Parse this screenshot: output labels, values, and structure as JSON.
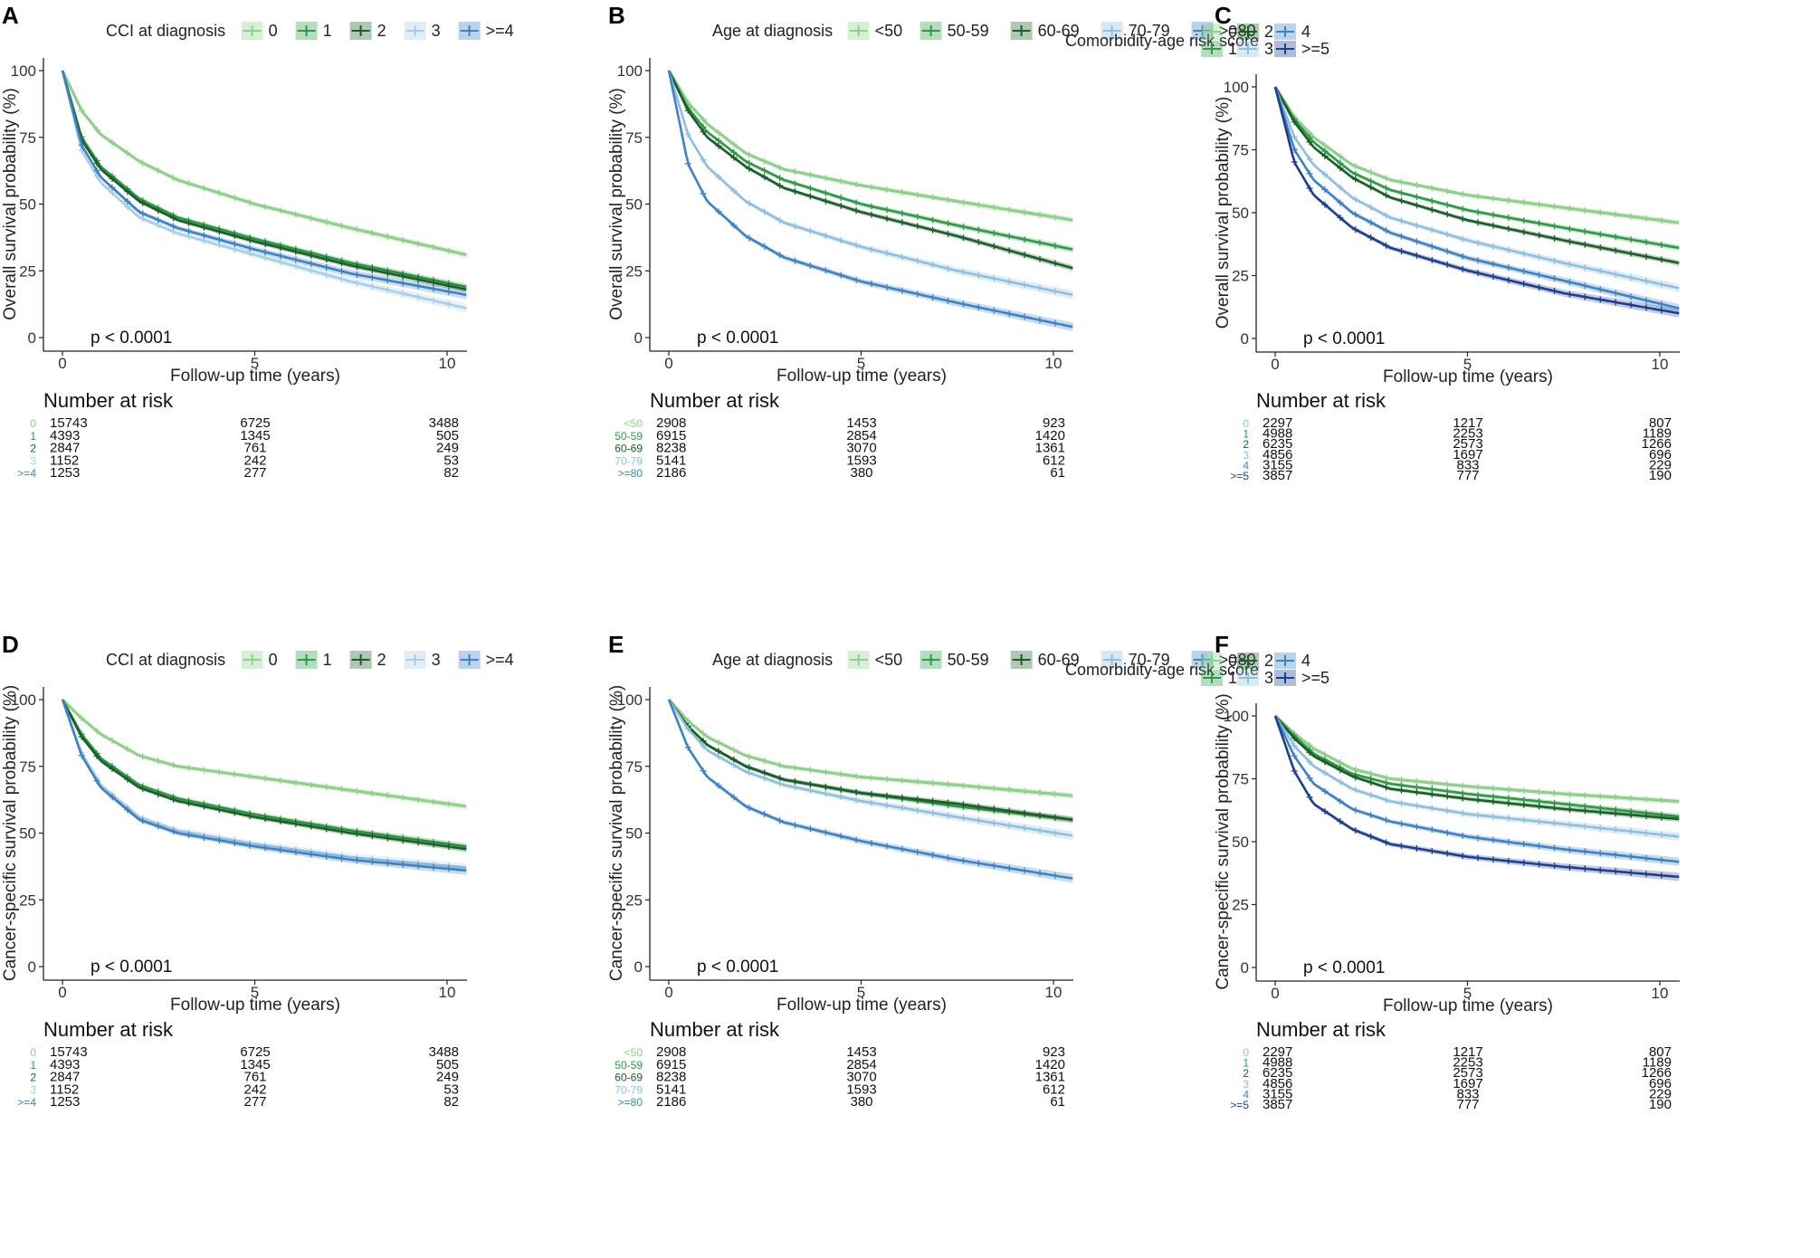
{
  "panels": [
    {
      "id": "A",
      "legend_title": "CCI at diagnosis",
      "ylabel": "Overall survival probability (%)",
      "xlabel": "Follow-up time (years)",
      "pvalue": "p < 0.0001",
      "risk_title": "Number at risk",
      "legend_rows": 1,
      "groups": [
        {
          "name": "0",
          "color": "#8fd18b",
          "risk": [
            "15743",
            "6725",
            "3488"
          ]
        },
        {
          "name": "1",
          "color": "#2e9a47",
          "risk": [
            "4393",
            "1345",
            "505"
          ]
        },
        {
          "name": "2",
          "color": "#1b5e27",
          "risk": [
            "2847",
            "761",
            "249"
          ]
        },
        {
          "name": "3",
          "color": "#a9cde6",
          "risk": [
            "1152",
            "242",
            "53"
          ]
        },
        {
          "name": ">=4",
          "color": "#3d82c4",
          "risk": [
            "1253",
            "277",
            "82"
          ]
        }
      ]
    },
    {
      "id": "B",
      "legend_title": "Age at diagnosis",
      "ylabel": "Overall survival probability (%)",
      "xlabel": "Follow-up time (years)",
      "pvalue": "p < 0.0001",
      "risk_title": "Number at risk",
      "legend_rows": 1,
      "groups": [
        {
          "name": "<50",
          "color": "#8fd18b",
          "risk": [
            "2908",
            "1453",
            "923"
          ]
        },
        {
          "name": "50-59",
          "color": "#2e9a47",
          "risk": [
            "6915",
            "2854",
            "1420"
          ]
        },
        {
          "name": "60-69",
          "color": "#1b5e27",
          "risk": [
            "8238",
            "3070",
            "1361"
          ]
        },
        {
          "name": "70-79",
          "color": "#8ebfe0",
          "risk": [
            "5141",
            "1593",
            "612"
          ]
        },
        {
          "name": ">=80",
          "color": "#3d82c4",
          "risk": [
            "2186",
            "380",
            "61"
          ]
        }
      ]
    },
    {
      "id": "C",
      "legend_title": "Comorbidity-age risk score",
      "ylabel": "Overall survival probability (%)",
      "xlabel": "Follow-up time (years)",
      "pvalue": "p < 0.0001",
      "risk_title": "Number at risk",
      "legend_rows": 2,
      "groups": [
        {
          "name": "0",
          "color": "#8fd18b",
          "risk": [
            "2297",
            "1217",
            "807"
          ]
        },
        {
          "name": "1",
          "color": "#2e9a47",
          "risk": [
            "4988",
            "2253",
            "1189"
          ]
        },
        {
          "name": "2",
          "color": "#1b5e27",
          "risk": [
            "6235",
            "2573",
            "1266"
          ]
        },
        {
          "name": "3",
          "color": "#8ebfe0",
          "risk": [
            "4856",
            "1697",
            "696"
          ]
        },
        {
          "name": "4",
          "color": "#3d82c4",
          "risk": [
            "3155",
            "833",
            "229"
          ]
        },
        {
          "name": ">=5",
          "color": "#1c3f8f",
          "risk": [
            "3857",
            "777",
            "190"
          ]
        }
      ]
    },
    {
      "id": "D",
      "legend_title": "CCI at diagnosis",
      "ylabel": "Cancer-specific survival probability (%)",
      "xlabel": "Follow-up time (years)",
      "pvalue": "p < 0.0001",
      "risk_title": "Number at risk",
      "legend_rows": 1,
      "groups": [
        {
          "name": "0",
          "color": "#8fd18b",
          "risk": [
            "15743",
            "6725",
            "3488"
          ]
        },
        {
          "name": "1",
          "color": "#2e9a47",
          "risk": [
            "4393",
            "1345",
            "505"
          ]
        },
        {
          "name": "2",
          "color": "#1b5e27",
          "risk": [
            "2847",
            "761",
            "249"
          ]
        },
        {
          "name": "3",
          "color": "#a9cde6",
          "risk": [
            "1152",
            "242",
            "53"
          ]
        },
        {
          "name": ">=4",
          "color": "#3d82c4",
          "risk": [
            "1253",
            "277",
            "82"
          ]
        }
      ]
    },
    {
      "id": "E",
      "legend_title": "Age at diagnosis",
      "ylabel": "Cancer-specific survival probability (%)",
      "xlabel": "Follow-up time (years)",
      "pvalue": "p < 0.0001",
      "risk_title": "Number at risk",
      "legend_rows": 1,
      "groups": [
        {
          "name": "<50",
          "color": "#8fd18b",
          "risk": [
            "2908",
            "1453",
            "923"
          ]
        },
        {
          "name": "50-59",
          "color": "#2e9a47",
          "risk": [
            "6915",
            "2854",
            "1420"
          ]
        },
        {
          "name": "60-69",
          "color": "#1b5e27",
          "risk": [
            "8238",
            "3070",
            "1361"
          ]
        },
        {
          "name": "70-79",
          "color": "#8ebfe0",
          "risk": [
            "5141",
            "1593",
            "612"
          ]
        },
        {
          "name": ">=80",
          "color": "#3d82c4",
          "risk": [
            "2186",
            "380",
            "61"
          ]
        }
      ]
    },
    {
      "id": "F",
      "legend_title": "Comorbidity-age risk score",
      "ylabel": "Cancer-specific survival probability (%)",
      "xlabel": "Follow-up time (years)",
      "pvalue": "p < 0.0001",
      "risk_title": "Number at risk",
      "legend_rows": 2,
      "groups": [
        {
          "name": "0",
          "color": "#8fd18b",
          "risk": [
            "2297",
            "1217",
            "807"
          ]
        },
        {
          "name": "1",
          "color": "#2e9a47",
          "risk": [
            "4988",
            "2253",
            "1189"
          ]
        },
        {
          "name": "2",
          "color": "#1b5e27",
          "risk": [
            "6235",
            "2573",
            "1266"
          ]
        },
        {
          "name": "3",
          "color": "#8ebfe0",
          "risk": [
            "4856",
            "1697",
            "696"
          ]
        },
        {
          "name": "4",
          "color": "#3d82c4",
          "risk": [
            "3155",
            "833",
            "229"
          ]
        },
        {
          "name": ">=5",
          "color": "#1c3f8f",
          "risk": [
            "3857",
            "777",
            "190"
          ]
        }
      ]
    }
  ],
  "chart_data": [
    {
      "panel": "A",
      "type": "line",
      "title": "CCI at diagnosis",
      "xlabel": "Follow-up time (years)",
      "ylabel": "Overall survival probability (%)",
      "xlim": [
        0,
        10.5
      ],
      "ylim": [
        0,
        100
      ],
      "xticks": [
        0,
        5,
        10
      ],
      "yticks": [
        0,
        25,
        50,
        75,
        100
      ],
      "x": [
        0,
        0.5,
        1,
        2,
        3,
        5,
        7.5,
        10.5
      ],
      "series": [
        {
          "name": "0",
          "values": [
            100,
            85,
            76,
            66,
            59,
            50,
            41,
            31
          ]
        },
        {
          "name": "1",
          "values": [
            100,
            75,
            64,
            52,
            45,
            37,
            28,
            19
          ]
        },
        {
          "name": "2",
          "values": [
            100,
            74,
            63,
            51,
            44,
            36,
            27,
            18
          ]
        },
        {
          "name": "3",
          "values": [
            100,
            70,
            58,
            45,
            39,
            31,
            21,
            11
          ]
        },
        {
          "name": ">=4",
          "values": [
            100,
            72,
            60,
            47,
            41,
            33,
            24,
            16
          ]
        }
      ]
    },
    {
      "panel": "B",
      "type": "line",
      "title": "Age at diagnosis",
      "xlabel": "Follow-up time (years)",
      "ylabel": "Overall survival probability (%)",
      "xlim": [
        0,
        10.5
      ],
      "ylim": [
        0,
        100
      ],
      "xticks": [
        0,
        5,
        10
      ],
      "yticks": [
        0,
        25,
        50,
        75,
        100
      ],
      "x": [
        0,
        0.5,
        1,
        2,
        3,
        5,
        7.5,
        10.5
      ],
      "series": [
        {
          "name": "<50",
          "values": [
            100,
            88,
            80,
            69,
            63,
            57,
            51,
            44
          ]
        },
        {
          "name": "50-59",
          "values": [
            100,
            86,
            77,
            66,
            59,
            50,
            42,
            33
          ]
        },
        {
          "name": "60-69",
          "values": [
            100,
            85,
            75,
            64,
            56,
            47,
            38,
            26
          ]
        },
        {
          "name": "70-79",
          "values": [
            100,
            76,
            64,
            51,
            43,
            34,
            25,
            16
          ]
        },
        {
          "name": ">=80",
          "values": [
            100,
            65,
            51,
            38,
            30,
            21,
            13,
            4
          ]
        }
      ]
    },
    {
      "panel": "C",
      "type": "line",
      "title": "Comorbidity-age risk score",
      "xlabel": "Follow-up time (years)",
      "ylabel": "Overall survival probability (%)",
      "xlim": [
        0,
        10.5
      ],
      "ylim": [
        0,
        100
      ],
      "xticks": [
        0,
        5,
        10
      ],
      "yticks": [
        0,
        25,
        50,
        75,
        100
      ],
      "x": [
        0,
        0.5,
        1,
        2,
        3,
        5,
        7.5,
        10.5
      ],
      "series": [
        {
          "name": "0",
          "values": [
            100,
            88,
            80,
            69,
            63,
            57,
            52,
            46
          ]
        },
        {
          "name": "1",
          "values": [
            100,
            87,
            78,
            66,
            59,
            51,
            44,
            36
          ]
        },
        {
          "name": "2",
          "values": [
            100,
            86,
            76,
            64,
            56,
            47,
            39,
            30
          ]
        },
        {
          "name": "3",
          "values": [
            100,
            80,
            69,
            56,
            48,
            39,
            30,
            20
          ]
        },
        {
          "name": "4",
          "values": [
            100,
            75,
            63,
            50,
            42,
            32,
            23,
            12
          ]
        },
        {
          "name": ">=5",
          "values": [
            100,
            70,
            57,
            44,
            36,
            27,
            18,
            10
          ]
        }
      ]
    },
    {
      "panel": "D",
      "type": "line",
      "title": "CCI at diagnosis",
      "xlabel": "Follow-up time (years)",
      "ylabel": "Cancer-specific survival probability (%)",
      "xlim": [
        0,
        10.5
      ],
      "ylim": [
        0,
        100
      ],
      "xticks": [
        0,
        5,
        10
      ],
      "yticks": [
        0,
        25,
        50,
        75,
        100
      ],
      "x": [
        0,
        0.5,
        1,
        2,
        3,
        5,
        7.5,
        10.5
      ],
      "series": [
        {
          "name": "0",
          "values": [
            100,
            93,
            87,
            79,
            75,
            71,
            66,
            60
          ]
        },
        {
          "name": "1",
          "values": [
            100,
            87,
            78,
            68,
            63,
            57,
            51,
            45
          ]
        },
        {
          "name": "2",
          "values": [
            100,
            86,
            77,
            67,
            62,
            56,
            50,
            44
          ]
        },
        {
          "name": "3",
          "values": [
            100,
            80,
            68,
            56,
            51,
            46,
            41,
            37
          ]
        },
        {
          "name": ">=4",
          "values": [
            100,
            79,
            67,
            55,
            50,
            45,
            40,
            36
          ]
        }
      ]
    },
    {
      "panel": "E",
      "type": "line",
      "title": "Age at diagnosis",
      "xlabel": "Follow-up time (years)",
      "ylabel": "Cancer-specific survival probability (%)",
      "xlim": [
        0,
        10.5
      ],
      "ylim": [
        0,
        100
      ],
      "xticks": [
        0,
        5,
        10
      ],
      "yticks": [
        0,
        25,
        50,
        75,
        100
      ],
      "x": [
        0,
        0.5,
        1,
        2,
        3,
        5,
        7.5,
        10.5
      ],
      "series": [
        {
          "name": "<50",
          "values": [
            100,
            92,
            86,
            79,
            75,
            71,
            68,
            64
          ]
        },
        {
          "name": "50-59",
          "values": [
            100,
            90,
            83,
            75,
            70,
            65,
            60,
            55
          ]
        },
        {
          "name": "60-69",
          "values": [
            100,
            90,
            83,
            75,
            70,
            65,
            61,
            55
          ]
        },
        {
          "name": "70-79",
          "values": [
            100,
            89,
            81,
            73,
            68,
            62,
            56,
            49
          ]
        },
        {
          "name": ">=80",
          "values": [
            100,
            82,
            71,
            60,
            54,
            47,
            40,
            33
          ]
        }
      ]
    },
    {
      "panel": "F",
      "type": "line",
      "title": "Comorbidity-age risk score",
      "xlabel": "Follow-up time (years)",
      "ylabel": "Cancer-specific survival probability (%)",
      "xlim": [
        0,
        10.5
      ],
      "ylim": [
        0,
        100
      ],
      "xticks": [
        0,
        5,
        10
      ],
      "yticks": [
        0,
        25,
        50,
        75,
        100
      ],
      "x": [
        0,
        0.5,
        1,
        2,
        3,
        5,
        7.5,
        10.5
      ],
      "series": [
        {
          "name": "0",
          "values": [
            100,
            93,
            87,
            79,
            75,
            72,
            69,
            66
          ]
        },
        {
          "name": "1",
          "values": [
            100,
            92,
            85,
            77,
            73,
            69,
            65,
            60
          ]
        },
        {
          "name": "2",
          "values": [
            100,
            91,
            84,
            76,
            71,
            67,
            63,
            59
          ]
        },
        {
          "name": "3",
          "values": [
            100,
            88,
            80,
            71,
            66,
            61,
            57,
            52
          ]
        },
        {
          "name": "4",
          "values": [
            100,
            84,
            73,
            63,
            58,
            52,
            47,
            42
          ]
        },
        {
          "name": ">=5",
          "values": [
            100,
            78,
            65,
            55,
            49,
            44,
            40,
            36
          ]
        }
      ]
    }
  ]
}
